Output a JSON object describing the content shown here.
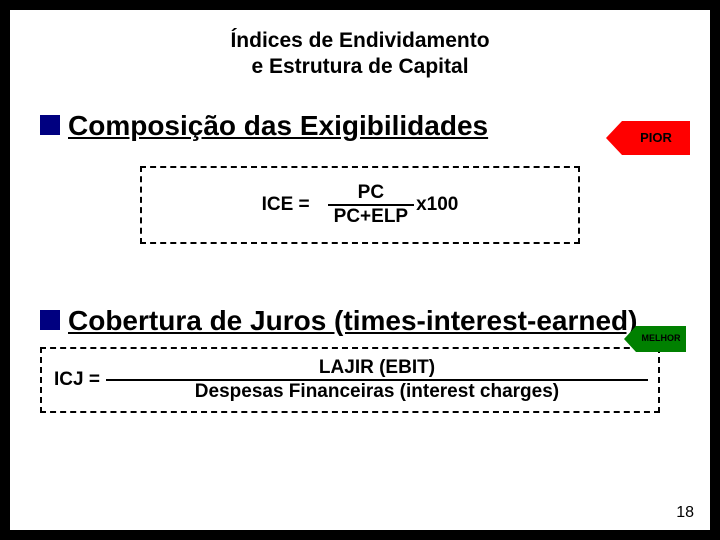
{
  "title_line1": "Índices de Endividamento",
  "title_line2": "e Estrutura de Capital",
  "section1": {
    "heading": "Composição das Exigibilidades",
    "badge": "PIOR",
    "formula": {
      "lhs": "ICE =",
      "num": "PC",
      "den": "PC+ELP",
      "tail": "x100"
    }
  },
  "section2": {
    "heading": "Cobertura de Juros (times-interest-earned)",
    "badge": "MELHOR",
    "formula": {
      "lhs": "ICJ =",
      "num": "LAJIR (EBIT)",
      "den": "Despesas Financeiras (interest charges)"
    }
  },
  "page_number": "18",
  "colors": {
    "bullet": "#000080",
    "badge_worse": "#ff0000",
    "badge_better": "#008000",
    "slide_bg": "#ffffff",
    "outer_bg": "#000000"
  }
}
